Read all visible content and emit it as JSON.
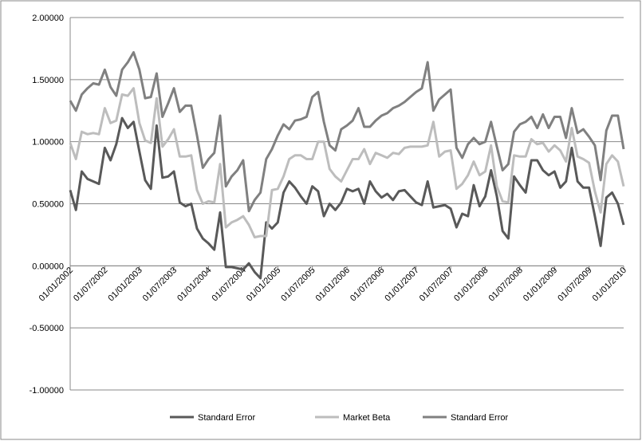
{
  "chart_data": {
    "type": "line",
    "categories": [
      "01/01/2002",
      null,
      null,
      null,
      null,
      null,
      "01/07/2002",
      null,
      null,
      null,
      null,
      null,
      "01/01/2003",
      null,
      null,
      null,
      null,
      null,
      "01/07/2003",
      null,
      null,
      null,
      null,
      null,
      "01/01/2004",
      null,
      null,
      null,
      null,
      null,
      "01/07/2004",
      null,
      null,
      null,
      null,
      null,
      "01/01/2005",
      null,
      null,
      null,
      null,
      null,
      "01/07/2005",
      null,
      null,
      null,
      null,
      null,
      "01/01/2006",
      null,
      null,
      null,
      null,
      null,
      "01/07/2006",
      null,
      null,
      null,
      null,
      null,
      "01/01/2007",
      null,
      null,
      null,
      null,
      null,
      "01/07/2007",
      null,
      null,
      null,
      null,
      null,
      "01/01/2008",
      null,
      null,
      null,
      null,
      null,
      "01/07/2008",
      null,
      null,
      null,
      null,
      null,
      "01/01/2009",
      null,
      null,
      null,
      null,
      null,
      "01/07/2009",
      null,
      null,
      null,
      null,
      null,
      "01/01/2010"
    ],
    "series": [
      {
        "name": "Standard Error",
        "color": "#595959",
        "values": [
          0.61,
          0.45,
          0.76,
          0.7,
          0.68,
          0.66,
          0.95,
          0.85,
          0.98,
          1.19,
          1.11,
          1.16,
          0.92,
          0.69,
          0.62,
          1.13,
          0.71,
          0.72,
          0.76,
          0.51,
          0.48,
          0.5,
          0.3,
          0.22,
          0.18,
          0.13,
          0.43,
          -0.01,
          -0.01,
          -0.02,
          -0.03,
          0.02,
          -0.05,
          -0.1,
          0.35,
          0.3,
          0.35,
          0.59,
          0.68,
          0.63,
          0.56,
          0.5,
          0.64,
          0.6,
          0.4,
          0.5,
          0.45,
          0.51,
          0.62,
          0.6,
          0.62,
          0.5,
          0.68,
          0.6,
          0.55,
          0.58,
          0.53,
          0.6,
          0.61,
          0.56,
          0.51,
          0.49,
          0.68,
          0.47,
          0.48,
          0.49,
          0.46,
          0.31,
          0.42,
          0.4,
          0.65,
          0.48,
          0.56,
          0.77,
          0.56,
          0.28,
          0.22,
          0.72,
          0.65,
          0.59,
          0.85,
          0.85,
          0.77,
          0.73,
          0.76,
          0.63,
          0.68,
          0.95,
          0.68,
          0.63,
          0.63,
          0.4,
          0.16,
          0.55,
          0.59,
          0.5,
          0.33
        ]
      },
      {
        "name": "Market Beta",
        "color": "#bdbdbd",
        "values": [
          0.99,
          0.86,
          1.08,
          1.06,
          1.07,
          1.06,
          1.27,
          1.15,
          1.17,
          1.38,
          1.37,
          1.43,
          1.15,
          1.01,
          0.99,
          1.35,
          0.96,
          1.02,
          1.1,
          0.88,
          0.88,
          0.89,
          0.61,
          0.5,
          0.52,
          0.51,
          0.82,
          0.31,
          0.35,
          0.37,
          0.4,
          0.33,
          0.23,
          0.24,
          0.24,
          0.61,
          0.62,
          0.72,
          0.86,
          0.89,
          0.89,
          0.86,
          0.86,
          1.0,
          1.0,
          0.78,
          0.72,
          0.68,
          0.77,
          0.86,
          0.86,
          0.94,
          0.82,
          0.91,
          0.89,
          0.87,
          0.91,
          0.9,
          0.95,
          0.96,
          0.96,
          0.96,
          0.97,
          1.16,
          0.88,
          0.92,
          0.93,
          0.62,
          0.66,
          0.73,
          0.84,
          0.73,
          0.76,
          0.97,
          0.64,
          0.52,
          0.51,
          0.89,
          0.88,
          0.88,
          1.02,
          0.98,
          0.99,
          0.92,
          0.97,
          0.93,
          0.84,
          1.11,
          0.88,
          0.86,
          0.83,
          0.6,
          0.43,
          0.82,
          0.89,
          0.84,
          0.64
        ]
      },
      {
        "name": "Standard Error",
        "color": "#808080",
        "values": [
          1.33,
          1.25,
          1.38,
          1.43,
          1.47,
          1.46,
          1.58,
          1.44,
          1.37,
          1.58,
          1.64,
          1.72,
          1.58,
          1.35,
          1.36,
          1.55,
          1.2,
          1.31,
          1.43,
          1.24,
          1.29,
          1.29,
          1.05,
          0.79,
          0.86,
          0.91,
          1.21,
          0.64,
          0.72,
          0.77,
          0.85,
          0.44,
          0.53,
          0.59,
          0.86,
          0.94,
          1.05,
          1.14,
          1.1,
          1.17,
          1.18,
          1.2,
          1.36,
          1.4,
          1.16,
          0.97,
          0.93,
          1.1,
          1.13,
          1.17,
          1.27,
          1.12,
          1.12,
          1.17,
          1.21,
          1.23,
          1.27,
          1.29,
          1.32,
          1.36,
          1.4,
          1.43,
          1.64,
          1.25,
          1.34,
          1.38,
          1.42,
          0.95,
          0.87,
          0.98,
          1.03,
          0.98,
          1.0,
          1.16,
          0.96,
          0.77,
          0.82,
          1.08,
          1.14,
          1.16,
          1.2,
          1.11,
          1.22,
          1.11,
          1.2,
          1.2,
          1.03,
          1.27,
          1.07,
          1.1,
          1.04,
          0.97,
          0.69,
          1.09,
          1.21,
          1.21,
          0.94
        ]
      }
    ],
    "ylim": [
      -1,
      2
    ],
    "yticks": [
      {
        "value": -1,
        "label": "-1.00000"
      },
      {
        "value": -0.5,
        "label": "-0.50000"
      },
      {
        "value": 0,
        "label": "0.00000"
      },
      {
        "value": 0.5,
        "label": "0.50000"
      },
      {
        "value": 1,
        "label": "1.00000"
      },
      {
        "value": 1.5,
        "label": "1.50000"
      },
      {
        "value": 2,
        "label": "2.00000"
      }
    ],
    "grid": true,
    "legend": "bottom"
  }
}
